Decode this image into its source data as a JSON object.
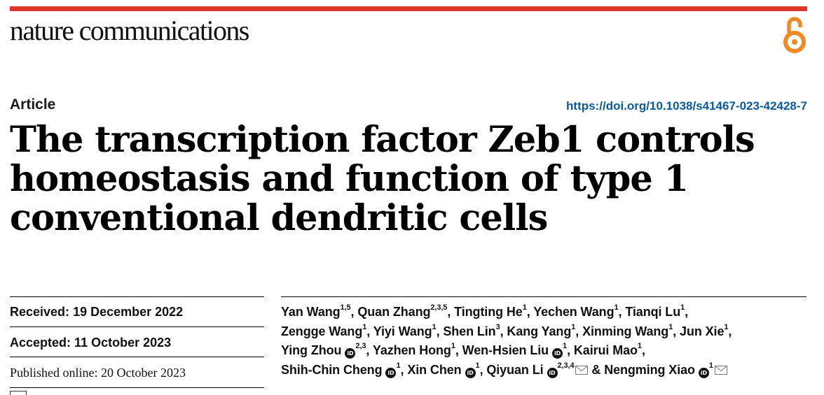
{
  "journal": {
    "name": "nature communications"
  },
  "colors": {
    "accent": "#e0372c",
    "link": "#0a5aa0",
    "open_access_icon": "#f08a24"
  },
  "icons": {
    "open_access": "open-access-icon",
    "orcid": "orcid-icon",
    "email": "envelope-icon"
  },
  "article": {
    "type": "Article",
    "doi": "https://doi.org/10.1038/s41467-023-42428-7",
    "title_lines": [
      "The transcription factor Zeb1 controls",
      "homeostasis and function of type 1",
      "conventional dendritic cells"
    ]
  },
  "dates": {
    "received_label": "Received:",
    "received": "19 December 2022",
    "accepted_label": "Accepted:",
    "accepted": "11 October 2023",
    "published_label": "Published online:",
    "published": "20 October 2023"
  },
  "authors": [
    {
      "name": "Yan Wang",
      "aff": "1,5"
    },
    {
      "name": "Quan Zhang",
      "aff": "2,3,5"
    },
    {
      "name": "Tingting He",
      "aff": "1"
    },
    {
      "name": "Yechen Wang",
      "aff": "1"
    },
    {
      "name": "Tianqi Lu",
      "aff": "1"
    },
    {
      "name": "Zengge Wang",
      "aff": "1"
    },
    {
      "name": "Yiyi Wang",
      "aff": "1"
    },
    {
      "name": "Shen Lin",
      "aff": "3"
    },
    {
      "name": "Kang Yang",
      "aff": "1"
    },
    {
      "name": "Xinming Wang",
      "aff": "1"
    },
    {
      "name": "Jun Xie",
      "aff": "1"
    },
    {
      "name": "Ying Zhou",
      "aff": "2,3"
    },
    {
      "name": "Yazhen Hong",
      "aff": "1"
    },
    {
      "name": "Wen-Hsien Liu",
      "aff": "1"
    },
    {
      "name": "Kairui Mao",
      "aff": "1"
    },
    {
      "name": "Shih-Chin Cheng",
      "aff": "1"
    },
    {
      "name": "Xin Chen",
      "aff": "1"
    },
    {
      "name": "Qiyuan Li",
      "aff": "2,3,4"
    },
    {
      "name": "Nengming Xiao",
      "aff": "1"
    }
  ],
  "author_separators": {
    "comma": ",",
    "and": "&"
  },
  "orcid_label": "iD"
}
